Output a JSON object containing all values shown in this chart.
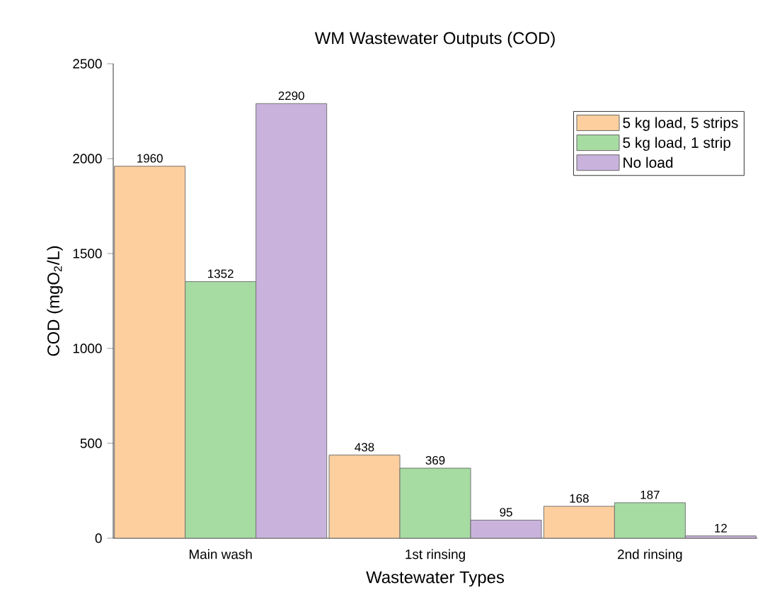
{
  "chart_data": {
    "type": "bar",
    "title": "WM Wastewater Outputs (COD)",
    "xlabel": "Wastewater Types",
    "ylabel": "COD (mgO$_{2}$/L)",
    "categories": [
      "Main wash",
      "1st rinsing",
      "2nd rinsing"
    ],
    "series": [
      {
        "name": "5 kg load, 5 strips",
        "color": "#fdcf9e",
        "values": [
          1960,
          438,
          168
        ]
      },
      {
        "name": "5 kg load, 1 strip",
        "color": "#a6dca2",
        "values": [
          1352,
          369,
          187
        ]
      },
      {
        "name": "No load",
        "color": "#c9b3dc",
        "values": [
          2290,
          95,
          12
        ]
      }
    ],
    "ylim": [
      0,
      2500
    ],
    "yticks": [
      0,
      500,
      1000,
      1500,
      2000,
      2500
    ],
    "data_labels": true,
    "grid": false,
    "legend": "top right"
  }
}
